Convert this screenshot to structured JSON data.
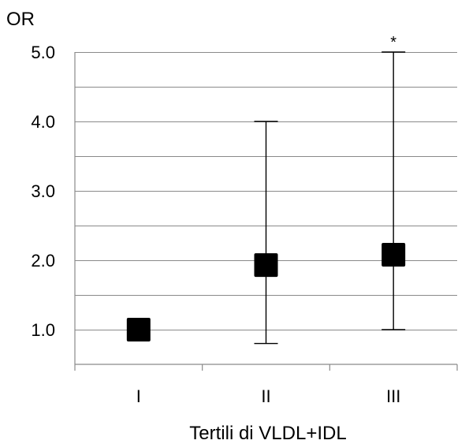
{
  "chart_data": {
    "type": "scatter",
    "title": "",
    "ylabel": "OR",
    "xlabel": "Tertili di VLDL+IDL",
    "categories": [
      "I",
      "II",
      "III"
    ],
    "y_ticks": [
      "1.0",
      "2.0",
      "3.0",
      "4.0",
      "5.0"
    ],
    "ylim": [
      0.5,
      5.0
    ],
    "grid": true,
    "gridline_step": 0.5,
    "legend": "none",
    "series": [
      {
        "values": [
          1.0,
          1.93,
          2.08
        ],
        "ci_lower": [
          null,
          0.8,
          1.0
        ],
        "ci_upper": [
          null,
          4.0,
          5.0
        ],
        "marker": "square",
        "color": "#000000"
      }
    ],
    "annotations": [
      {
        "category": "III",
        "text": "*"
      }
    ]
  }
}
